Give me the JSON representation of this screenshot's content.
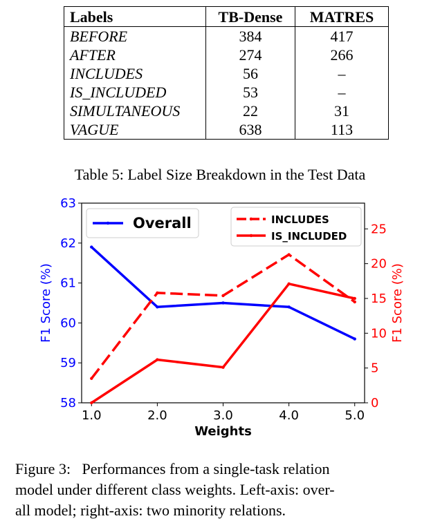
{
  "table": {
    "headers": [
      "Labels",
      "TB-Dense",
      "MATRES"
    ],
    "rows": [
      [
        "BEFORE",
        "384",
        "417"
      ],
      [
        "AFTER",
        "274",
        "266"
      ],
      [
        "INCLUDES",
        "56",
        "–"
      ],
      [
        "IS_INCLUDED",
        "53",
        "–"
      ],
      [
        "SIMULTANEOUS",
        "22",
        "31"
      ],
      [
        "VAGUE",
        "638",
        "113"
      ]
    ],
    "caption": "Table 5: Label Size Breakdown in the Test Data"
  },
  "chart_data": {
    "type": "line",
    "x": [
      1.0,
      2.0,
      3.0,
      4.0,
      5.0
    ],
    "x_ticks": [
      "1.0",
      "2.0",
      "3.0",
      "4.0",
      "5.0"
    ],
    "xlabel": "Weights",
    "xlim": [
      0.85,
      5.15
    ],
    "ylabel_left": "F1 Score (%)",
    "ylim_left": [
      58,
      63
    ],
    "yticks_left": [
      "58",
      "59",
      "60",
      "61",
      "62",
      "63"
    ],
    "ylabel_right": "F1 Score (%)",
    "ylim_right": [
      0,
      28.7
    ],
    "yticks_right": [
      "0",
      "5",
      "10",
      "15",
      "20",
      "25"
    ],
    "grid": false,
    "series": [
      {
        "name": "Overall",
        "axis": "left",
        "color": "#0000ff",
        "style": "solid",
        "values": [
          61.9,
          60.4,
          60.5,
          60.4,
          59.6
        ]
      },
      {
        "name": "INCLUDES",
        "axis": "right",
        "color": "#ff0000",
        "style": "dashed",
        "values": [
          3.5,
          15.8,
          15.4,
          21.3,
          14.5
        ]
      },
      {
        "name": "IS_INCLUDED",
        "axis": "right",
        "color": "#ff0000",
        "style": "solid",
        "values": [
          0.0,
          6.2,
          5.1,
          17.1,
          15.0
        ]
      }
    ],
    "legend_left": "top-left",
    "legend_right": "top-right"
  },
  "figure_caption": {
    "line1": "Figure 3:   Performances from a single-task relation",
    "line2": "model under different class weights. Left-axis: over-",
    "line3": "all model; right-axis: two minority relations."
  }
}
